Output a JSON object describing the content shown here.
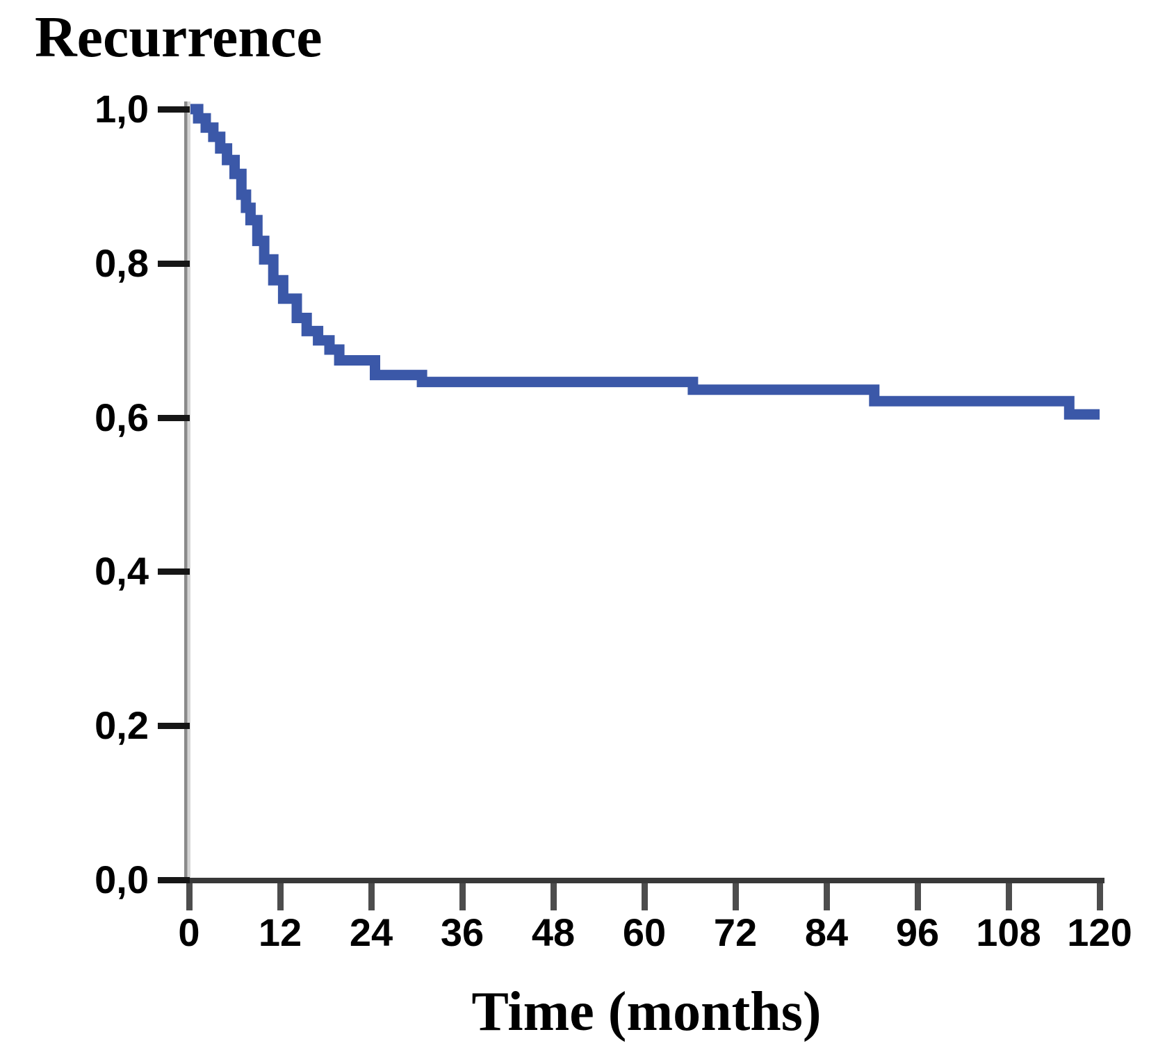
{
  "colors": {
    "curve": "#3B58A8",
    "x_axis": "#383838",
    "y_axis_dark": "#8a8a8a",
    "y_axis_light": "#d5d5d5",
    "y_tick": "#161616",
    "x_tick": "#4d4d4d",
    "text": "#000000",
    "background": "#ffffff"
  },
  "chart_data": {
    "type": "line",
    "style": "step-after",
    "subtype": "kaplan-meier-survival-curve",
    "title": "Recurrence",
    "xlabel": "Time (months)",
    "ylabel": "",
    "xlim": [
      0,
      120
    ],
    "ylim": [
      0.0,
      1.0
    ],
    "grid": false,
    "legend": "none",
    "decimal_separator": ",",
    "x_tick_values": [
      0,
      12,
      24,
      36,
      48,
      60,
      72,
      84,
      96,
      108,
      120
    ],
    "x_tick_labels": [
      "0",
      "12",
      "24",
      "36",
      "48",
      "60",
      "72",
      "84",
      "96",
      "108",
      "120"
    ],
    "y_tick_values": [
      0.0,
      0.2,
      0.4,
      0.6,
      0.8,
      1.0
    ],
    "y_tick_labels": [
      "0,0",
      "0,2",
      "0,4",
      "0,6",
      "0,8",
      "1,0"
    ],
    "series": [
      {
        "name": "recurrence-free-proportion",
        "color": "#3B58A8",
        "stroke_width": 15,
        "points": [
          [
            0.0,
            1.0
          ],
          [
            1.2,
            0.988
          ],
          [
            2.2,
            0.976
          ],
          [
            3.2,
            0.964
          ],
          [
            4.1,
            0.949
          ],
          [
            5.0,
            0.934
          ],
          [
            6.0,
            0.916
          ],
          [
            6.9,
            0.889
          ],
          [
            7.5,
            0.872
          ],
          [
            8.1,
            0.856
          ],
          [
            9.0,
            0.829
          ],
          [
            9.9,
            0.805
          ],
          [
            11.1,
            0.778
          ],
          [
            12.4,
            0.754
          ],
          [
            14.2,
            0.729
          ],
          [
            15.5,
            0.712
          ],
          [
            17.0,
            0.7
          ],
          [
            18.5,
            0.688
          ],
          [
            19.8,
            0.674
          ],
          [
            24.5,
            0.655
          ],
          [
            30.7,
            0.646
          ],
          [
            66.4,
            0.636
          ],
          [
            90.3,
            0.621
          ],
          [
            116.0,
            0.604
          ],
          [
            120.0,
            0.604
          ]
        ]
      }
    ]
  }
}
